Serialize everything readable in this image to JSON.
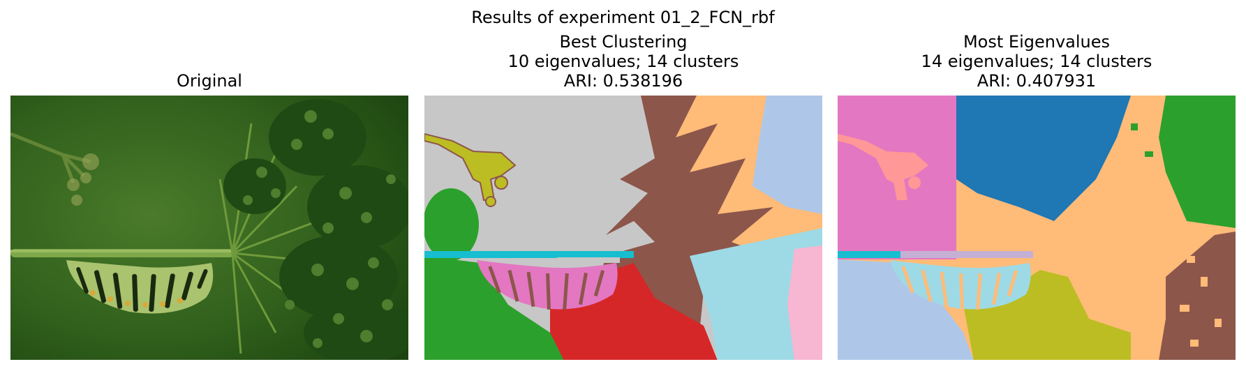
{
  "figure": {
    "suptitle": "Results of experiment 01_2_FCN_rbf"
  },
  "panels": [
    {
      "title_lines": [
        "Original"
      ],
      "image": "photo of a green swallowtail caterpillar hanging under a plant stem with dill-like seed heads on a blurred green background"
    },
    {
      "title_lines": [
        "Best Clustering",
        "10 eigenvalues; 14 clusters",
        "ARI: 0.538196"
      ],
      "image": "segmentation map with 14 colored clusters"
    },
    {
      "title_lines": [
        "Most Eigenvalues",
        "14 eigenvalues; 14 clusters",
        "ARI: 0.407931"
      ],
      "image": "segmentation map with 14 colored clusters"
    }
  ],
  "colors": {
    "tab_blue": "#1f77b4",
    "tab_orange_light": "#ffbb78",
    "tab_green": "#2ca02c",
    "tab_red": "#d62728",
    "tab_brown": "#8c564b",
    "tab_pink": "#e377c2",
    "tab_pink_light": "#f7b6d2",
    "tab_gray_light": "#c7c7c7",
    "tab_olive": "#bcbd22",
    "tab_cyan": "#17becf",
    "tab_cyan_light": "#9edae5",
    "tab_blue_light": "#aec7e8",
    "tab_red_light": "#ff9896",
    "tab_purple_light": "#c5b0d5"
  }
}
